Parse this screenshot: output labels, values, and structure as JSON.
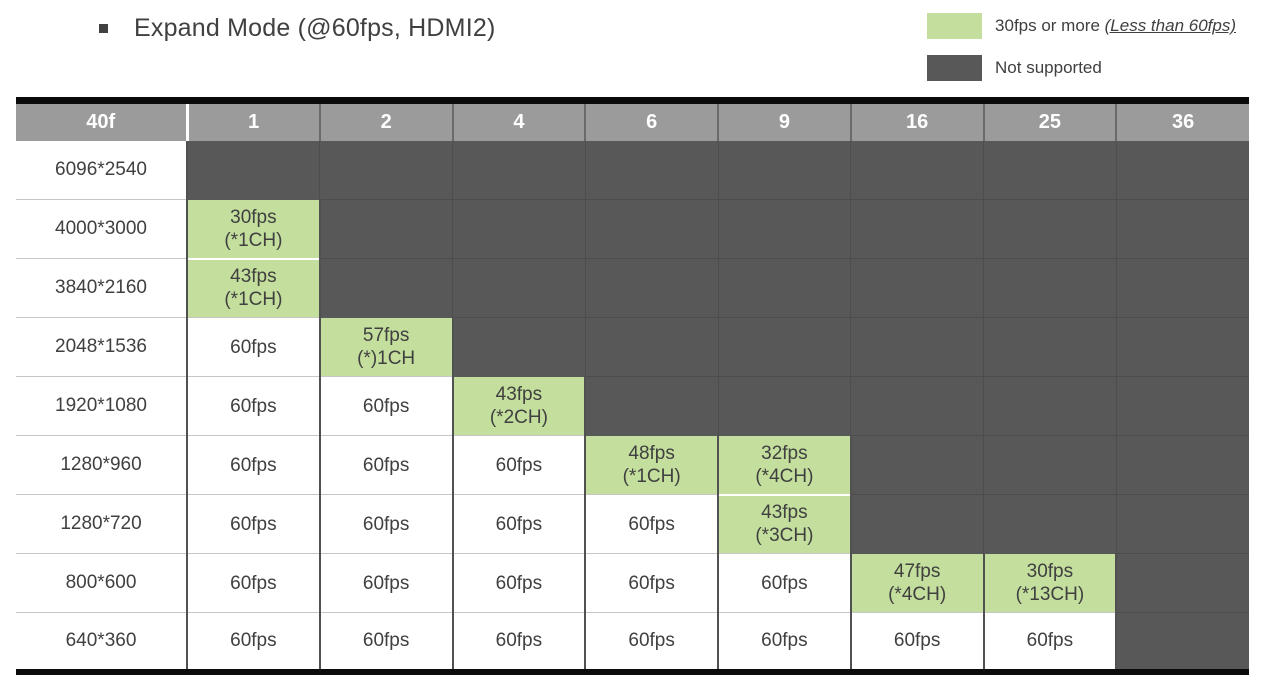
{
  "title": {
    "text": "Expand Mode (@60fps, HDMI2)"
  },
  "legend": {
    "items": [
      {
        "name": "supported",
        "label": "30fps or more ",
        "label_em": "(Less than 60fps)",
        "swatch_color": "#c3de9d"
      },
      {
        "name": "not_supported",
        "label": "Not supported",
        "label_em": "",
        "swatch_color": "#585858"
      }
    ]
  },
  "colors": {
    "supported_green": "#c3de9d",
    "not_supported_gray": "#585858",
    "header_gray": "#9b9b9b",
    "text": "#404040",
    "table_frame_black": "#0b0b0b"
  },
  "table": {
    "corner_label": "40f",
    "columns": [
      "1",
      "2",
      "4",
      "6",
      "9",
      "16",
      "25",
      "36"
    ],
    "rows": [
      {
        "label": "6096*2540",
        "cells": [
          {
            "type": "ns",
            "lines": []
          },
          {
            "type": "ns",
            "lines": []
          },
          {
            "type": "ns",
            "lines": []
          },
          {
            "type": "ns",
            "lines": []
          },
          {
            "type": "ns",
            "lines": []
          },
          {
            "type": "ns",
            "lines": []
          },
          {
            "type": "ns",
            "lines": []
          },
          {
            "type": "ns",
            "lines": []
          }
        ]
      },
      {
        "label": "4000*3000",
        "cells": [
          {
            "type": "warn",
            "lines": [
              "30fps",
              "(*1CH)"
            ]
          },
          {
            "type": "ns",
            "lines": []
          },
          {
            "type": "ns",
            "lines": []
          },
          {
            "type": "ns",
            "lines": []
          },
          {
            "type": "ns",
            "lines": []
          },
          {
            "type": "ns",
            "lines": []
          },
          {
            "type": "ns",
            "lines": []
          },
          {
            "type": "ns",
            "lines": []
          }
        ]
      },
      {
        "label": "3840*2160",
        "cells": [
          {
            "type": "warn",
            "lines": [
              "43fps",
              "(*1CH)"
            ]
          },
          {
            "type": "ns",
            "lines": []
          },
          {
            "type": "ns",
            "lines": []
          },
          {
            "type": "ns",
            "lines": []
          },
          {
            "type": "ns",
            "lines": []
          },
          {
            "type": "ns",
            "lines": []
          },
          {
            "type": "ns",
            "lines": []
          },
          {
            "type": "ns",
            "lines": []
          }
        ]
      },
      {
        "label": "2048*1536",
        "cells": [
          {
            "type": "ok",
            "lines": [
              "60fps"
            ]
          },
          {
            "type": "warn",
            "lines": [
              "57fps",
              "(*)1CH"
            ]
          },
          {
            "type": "ns",
            "lines": []
          },
          {
            "type": "ns",
            "lines": []
          },
          {
            "type": "ns",
            "lines": []
          },
          {
            "type": "ns",
            "lines": []
          },
          {
            "type": "ns",
            "lines": []
          },
          {
            "type": "ns",
            "lines": []
          }
        ]
      },
      {
        "label": "1920*1080",
        "cells": [
          {
            "type": "ok",
            "lines": [
              "60fps"
            ]
          },
          {
            "type": "ok",
            "lines": [
              "60fps"
            ]
          },
          {
            "type": "warn",
            "lines": [
              "43fps",
              "(*2CH)"
            ]
          },
          {
            "type": "ns",
            "lines": []
          },
          {
            "type": "ns",
            "lines": []
          },
          {
            "type": "ns",
            "lines": []
          },
          {
            "type": "ns",
            "lines": []
          },
          {
            "type": "ns",
            "lines": []
          }
        ]
      },
      {
        "label": "1280*960",
        "cells": [
          {
            "type": "ok",
            "lines": [
              "60fps"
            ]
          },
          {
            "type": "ok",
            "lines": [
              "60fps"
            ]
          },
          {
            "type": "ok",
            "lines": [
              "60fps"
            ]
          },
          {
            "type": "warn",
            "lines": [
              "48fps",
              "(*1CH)"
            ]
          },
          {
            "type": "warn",
            "lines": [
              "32fps",
              "(*4CH)"
            ]
          },
          {
            "type": "ns",
            "lines": []
          },
          {
            "type": "ns",
            "lines": []
          },
          {
            "type": "ns",
            "lines": []
          }
        ]
      },
      {
        "label": "1280*720",
        "cells": [
          {
            "type": "ok",
            "lines": [
              "60fps"
            ]
          },
          {
            "type": "ok",
            "lines": [
              "60fps"
            ]
          },
          {
            "type": "ok",
            "lines": [
              "60fps"
            ]
          },
          {
            "type": "ok",
            "lines": [
              "60fps"
            ]
          },
          {
            "type": "warn",
            "lines": [
              "43fps",
              "(*3CH)"
            ]
          },
          {
            "type": "ns",
            "lines": []
          },
          {
            "type": "ns",
            "lines": []
          },
          {
            "type": "ns",
            "lines": []
          }
        ]
      },
      {
        "label": "800*600",
        "cells": [
          {
            "type": "ok",
            "lines": [
              "60fps"
            ]
          },
          {
            "type": "ok",
            "lines": [
              "60fps"
            ]
          },
          {
            "type": "ok",
            "lines": [
              "60fps"
            ]
          },
          {
            "type": "ok",
            "lines": [
              "60fps"
            ]
          },
          {
            "type": "ok",
            "lines": [
              "60fps"
            ]
          },
          {
            "type": "warn",
            "lines": [
              "47fps",
              "(*4CH)"
            ]
          },
          {
            "type": "warn",
            "lines": [
              "30fps",
              "(*13CH)"
            ]
          },
          {
            "type": "ns",
            "lines": []
          }
        ]
      },
      {
        "label": "640*360",
        "cells": [
          {
            "type": "ok",
            "lines": [
              "60fps"
            ]
          },
          {
            "type": "ok",
            "lines": [
              "60fps"
            ]
          },
          {
            "type": "ok",
            "lines": [
              "60fps"
            ]
          },
          {
            "type": "ok",
            "lines": [
              "60fps"
            ]
          },
          {
            "type": "ok",
            "lines": [
              "60fps"
            ]
          },
          {
            "type": "ok",
            "lines": [
              "60fps"
            ]
          },
          {
            "type": "ok",
            "lines": [
              "60fps"
            ]
          },
          {
            "type": "ns",
            "lines": []
          }
        ]
      }
    ]
  }
}
